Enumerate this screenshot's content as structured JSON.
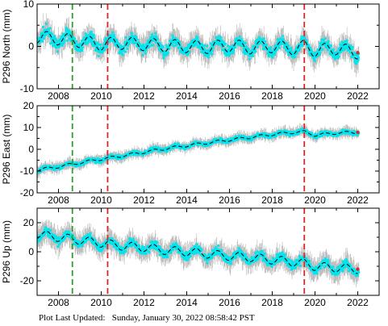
{
  "footer_text": "Plot Last Updated:   Sunday, January 30, 2022 08:58:42 PST",
  "colors": {
    "errorbar": "#b4b4b4",
    "points": "#00e5ee",
    "trend": "#000000",
    "vline_green": "#2ca02c",
    "vline_red": "#d62728",
    "endpoint": "#cc3333"
  },
  "chart_data": [
    {
      "type": "scatter",
      "ylabel": "P296 North (mm)",
      "xlim": [
        2007.0,
        2023.0
      ],
      "ylim": [
        -10,
        10
      ],
      "yticks": [
        -10,
        0,
        10
      ],
      "xticks": [
        2008,
        2010,
        2012,
        2014,
        2016,
        2018,
        2020,
        2022
      ],
      "grid": false,
      "vlines": [
        {
          "x": 2008.65,
          "color": "green"
        },
        {
          "x": 2010.3,
          "color": "red"
        },
        {
          "x": 2019.5,
          "color": "red"
        }
      ],
      "trend": [
        [
          2007.0,
          2.2
        ],
        [
          2008.0,
          1.8
        ],
        [
          2009.0,
          1.2
        ],
        [
          2010.0,
          0.5
        ],
        [
          2011.0,
          0.8
        ],
        [
          2012.0,
          0.5
        ],
        [
          2013.0,
          0.2
        ],
        [
          2014.0,
          0.0
        ],
        [
          2015.0,
          -0.2
        ],
        [
          2016.0,
          0.2
        ],
        [
          2017.0,
          -0.3
        ],
        [
          2018.0,
          0.0
        ],
        [
          2019.0,
          -0.5
        ],
        [
          2019.5,
          0.0
        ],
        [
          2020.0,
          -1.0
        ],
        [
          2021.0,
          -0.5
        ],
        [
          2022.0,
          -1.5
        ]
      ],
      "seasonal_amplitude": 1.5,
      "scatter_spread": 1.8,
      "error_bar": 2.2
    },
    {
      "type": "scatter",
      "ylabel": "P296 East (mm)",
      "xlim": [
        2007.0,
        2023.0
      ],
      "ylim": [
        -20,
        20
      ],
      "yticks": [
        -20,
        -10,
        0,
        10,
        20
      ],
      "xticks": [
        2008,
        2010,
        2012,
        2014,
        2016,
        2018,
        2020,
        2022
      ],
      "grid": false,
      "vlines": [
        {
          "x": 2008.65,
          "color": "green"
        },
        {
          "x": 2010.3,
          "color": "red"
        },
        {
          "x": 2019.5,
          "color": "red"
        }
      ],
      "trend": [
        [
          2007.0,
          -9.5
        ],
        [
          2008.0,
          -8.0
        ],
        [
          2009.0,
          -6.2
        ],
        [
          2010.0,
          -4.5
        ],
        [
          2011.0,
          -3.0
        ],
        [
          2012.0,
          -1.3
        ],
        [
          2013.0,
          0.3
        ],
        [
          2014.0,
          1.7
        ],
        [
          2015.0,
          3.0
        ],
        [
          2016.0,
          4.3
        ],
        [
          2017.0,
          5.5
        ],
        [
          2018.0,
          6.8
        ],
        [
          2019.0,
          7.8
        ],
        [
          2019.5,
          8.0
        ],
        [
          2020.0,
          6.5
        ],
        [
          2021.0,
          7.5
        ],
        [
          2022.0,
          7.8
        ]
      ],
      "seasonal_amplitude": 0.6,
      "scatter_spread": 1.3,
      "error_bar": 2.0
    },
    {
      "type": "scatter",
      "ylabel": "P296 Up (mm)",
      "xlim": [
        2007.0,
        2023.0
      ],
      "ylim": [
        -30,
        30
      ],
      "yticks": [
        -20,
        0,
        20
      ],
      "xticks": [
        2008,
        2010,
        2012,
        2014,
        2016,
        2018,
        2020,
        2022
      ],
      "grid": false,
      "vlines": [
        {
          "x": 2008.65,
          "color": "green"
        },
        {
          "x": 2010.3,
          "color": "red"
        },
        {
          "x": 2019.5,
          "color": "red"
        }
      ],
      "trend": [
        [
          2007.0,
          12.0
        ],
        [
          2008.0,
          10.0
        ],
        [
          2009.0,
          8.0
        ],
        [
          2010.0,
          6.0
        ],
        [
          2011.0,
          4.0
        ],
        [
          2012.0,
          3.0
        ],
        [
          2013.0,
          1.0
        ],
        [
          2014.0,
          0.0
        ],
        [
          2015.0,
          -1.5
        ],
        [
          2016.0,
          -3.0
        ],
        [
          2017.0,
          -4.0
        ],
        [
          2018.0,
          -5.5
        ],
        [
          2019.0,
          -7.0
        ],
        [
          2019.5,
          -8.0
        ],
        [
          2020.0,
          -10.0
        ],
        [
          2021.0,
          -11.0
        ],
        [
          2022.0,
          -12.0
        ]
      ],
      "seasonal_amplitude": 3.0,
      "scatter_spread": 4.0,
      "error_bar": 6.0
    }
  ]
}
